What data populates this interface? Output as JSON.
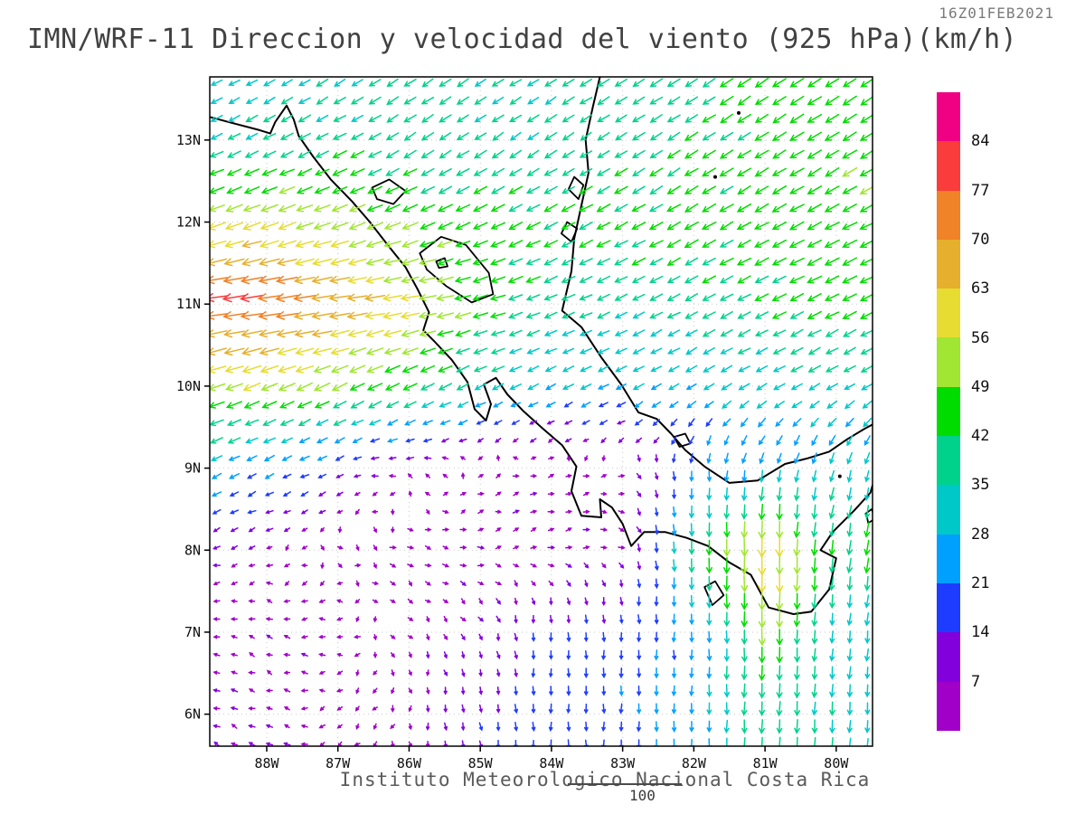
{
  "header": {
    "timestamp": "16Z01FEB2021",
    "title": "IMN/WRF-11 Direccion y velocidad del viento (925 hPa)(km/h)"
  },
  "footer": {
    "institution": "Instituto Meteorologico Nacional Costa Rica",
    "ref_label": "100"
  },
  "chart_data": {
    "type": "vector_field",
    "title": "IMN/WRF-11 Direccion y velocidad del viento (925 hPa)(km/h)",
    "level": "925 hPa",
    "units": "km/h",
    "valid_time": "16Z01FEB2021",
    "lon_range": [
      -88.8,
      -79.49
    ],
    "lat_range": [
      5.61,
      13.77
    ],
    "x_ticks": [
      "88W",
      "87W",
      "86W",
      "85W",
      "84W",
      "83W",
      "82W",
      "81W",
      "80W"
    ],
    "x_tick_lons": [
      -88,
      -87,
      -86,
      -85,
      -84,
      -83,
      -82,
      -81,
      -80
    ],
    "y_ticks": [
      "13N",
      "12N",
      "11N",
      "10N",
      "9N",
      "8N",
      "7N",
      "6N"
    ],
    "y_tick_lats": [
      13,
      12,
      11,
      10,
      9,
      8,
      7,
      6
    ],
    "colorbar": {
      "levels": [
        7,
        14,
        21,
        28,
        35,
        42,
        49,
        56,
        63,
        70,
        77,
        84
      ],
      "labels": [
        "7",
        "14",
        "21",
        "28",
        "35",
        "42",
        "49",
        "56",
        "63",
        "70",
        "77",
        "84"
      ],
      "colors": [
        "#A000C8",
        "#8200DC",
        "#1E3CFF",
        "#00A0FF",
        "#00C8C8",
        "#00D28C",
        "#00DC00",
        "#A0E632",
        "#E6DC32",
        "#E6AF2D",
        "#F08228",
        "#FA3C3C",
        "#F00082"
      ]
    },
    "wind_grid": {
      "comment": "u,v wind components (km/h, east/north positive) on coarse grid; rows follow lats order",
      "lons": [
        -89,
        -88,
        -87,
        -86,
        -85,
        -84,
        -83,
        -82,
        -81,
        -80,
        -79.4
      ],
      "lats": [
        14,
        13,
        12,
        11,
        10,
        9,
        8,
        7,
        6,
        5.5
      ],
      "u": [
        [
          -25,
          -25,
          -28,
          -30,
          -30,
          -30,
          -32,
          -35,
          -38,
          -38,
          -38
        ],
        [
          -30,
          -32,
          -35,
          -32,
          -30,
          -30,
          -32,
          -35,
          -38,
          -40,
          -40
        ],
        [
          -52,
          -55,
          -50,
          -45,
          -40,
          -38,
          -38,
          -38,
          -40,
          -42,
          -42
        ],
        [
          -78,
          -76,
          -68,
          -58,
          -45,
          -35,
          -32,
          -35,
          -38,
          -40,
          -40
        ],
        [
          -55,
          -50,
          -45,
          -40,
          -30,
          -25,
          -25,
          -25,
          -28,
          -28,
          -28
        ],
        [
          -25,
          -20,
          -12,
          -5,
          3,
          5,
          4,
          0,
          -5,
          -8,
          -8
        ],
        [
          -8,
          -5,
          3,
          5,
          6,
          6,
          5,
          2,
          0,
          -5,
          -5
        ],
        [
          -6,
          -5,
          -4,
          2,
          3,
          0,
          0,
          0,
          0,
          -3,
          -3
        ],
        [
          -8,
          -6,
          -4,
          0,
          2,
          0,
          0,
          0,
          -2,
          -2,
          -2
        ],
        [
          -8,
          -6,
          -4,
          0,
          2,
          0,
          0,
          0,
          -2,
          -2,
          -2
        ]
      ],
      "v": [
        [
          -15,
          -15,
          -18,
          -20,
          -20,
          -18,
          -20,
          -22,
          -25,
          -25,
          -25
        ],
        [
          -15,
          -16,
          -18,
          -20,
          -20,
          -20,
          -20,
          -22,
          -24,
          -25,
          -25
        ],
        [
          -18,
          -20,
          -18,
          -18,
          -18,
          -20,
          -20,
          -22,
          -22,
          -22,
          -22
        ],
        [
          -10,
          -10,
          -10,
          -10,
          -12,
          -15,
          -15,
          -18,
          -18,
          -20,
          -20
        ],
        [
          -18,
          -20,
          -22,
          -20,
          -15,
          -12,
          -12,
          -15,
          -15,
          -15,
          -15
        ],
        [
          -12,
          -10,
          -5,
          2,
          3,
          2,
          0,
          -20,
          -25,
          -28,
          -28
        ],
        [
          -3,
          -2,
          -2,
          -2,
          0,
          2,
          -3,
          -40,
          -65,
          -40,
          -45
        ],
        [
          2,
          2,
          0,
          -3,
          -8,
          -15,
          -18,
          -22,
          -50,
          -30,
          -30
        ],
        [
          3,
          2,
          -2,
          -6,
          -12,
          -18,
          -20,
          -25,
          -40,
          -35,
          -30
        ],
        [
          3,
          2,
          -2,
          -6,
          -12,
          -18,
          -20,
          -25,
          -40,
          -35,
          -30
        ]
      ]
    },
    "coastlines": {
      "open": [
        [
          [
            -88.8,
            13.28
          ],
          [
            -88.45,
            13.2
          ],
          [
            -88.1,
            13.12
          ],
          [
            -87.95,
            13.08
          ],
          [
            -87.88,
            13.22
          ],
          [
            -87.72,
            13.42
          ],
          [
            -87.62,
            13.25
          ],
          [
            -87.55,
            13.05
          ],
          [
            -87.35,
            12.8
          ],
          [
            -87.1,
            12.52
          ],
          [
            -86.8,
            12.25
          ],
          [
            -86.55,
            12.0
          ],
          [
            -86.3,
            11.72
          ],
          [
            -86.05,
            11.45
          ],
          [
            -85.88,
            11.18
          ],
          [
            -85.72,
            10.9
          ],
          [
            -85.8,
            10.68
          ],
          [
            -85.65,
            10.55
          ],
          [
            -85.4,
            10.32
          ],
          [
            -85.18,
            10.05
          ],
          [
            -85.08,
            9.72
          ],
          [
            -84.92,
            9.58
          ],
          [
            -84.85,
            9.78
          ],
          [
            -84.95,
            10.02
          ],
          [
            -84.78,
            10.1
          ],
          [
            -84.62,
            9.9
          ],
          [
            -84.4,
            9.7
          ],
          [
            -84.12,
            9.48
          ],
          [
            -83.85,
            9.28
          ],
          [
            -83.65,
            9.02
          ],
          [
            -83.72,
            8.72
          ],
          [
            -83.58,
            8.42
          ],
          [
            -83.3,
            8.4
          ],
          [
            -83.32,
            8.62
          ],
          [
            -83.15,
            8.52
          ],
          [
            -83.0,
            8.32
          ],
          [
            -82.88,
            8.05
          ],
          [
            -82.7,
            8.22
          ],
          [
            -82.4,
            8.22
          ],
          [
            -82.1,
            8.15
          ],
          [
            -81.8,
            8.05
          ],
          [
            -81.5,
            7.85
          ],
          [
            -81.2,
            7.7
          ],
          [
            -80.95,
            7.3
          ],
          [
            -80.6,
            7.22
          ],
          [
            -80.35,
            7.25
          ],
          [
            -80.1,
            7.52
          ],
          [
            -80.0,
            7.9
          ],
          [
            -80.22,
            8.0
          ],
          [
            -80.05,
            8.22
          ],
          [
            -79.75,
            8.48
          ],
          [
            -79.52,
            8.7
          ],
          [
            -79.45,
            8.9
          ]
        ],
        [
          [
            -83.32,
            13.77
          ],
          [
            -83.42,
            13.4
          ],
          [
            -83.52,
            13.0
          ],
          [
            -83.48,
            12.6
          ],
          [
            -83.58,
            12.2
          ],
          [
            -83.68,
            11.8
          ],
          [
            -83.72,
            11.4
          ],
          [
            -83.85,
            10.92
          ],
          [
            -83.58,
            10.72
          ],
          [
            -83.3,
            10.35
          ],
          [
            -83.02,
            10.02
          ],
          [
            -82.78,
            9.68
          ],
          [
            -82.52,
            9.6
          ],
          [
            -82.32,
            9.42
          ],
          [
            -82.12,
            9.22
          ],
          [
            -81.85,
            9.02
          ],
          [
            -81.5,
            8.82
          ],
          [
            -81.1,
            8.85
          ],
          [
            -80.72,
            9.05
          ],
          [
            -80.4,
            9.12
          ],
          [
            -80.1,
            9.2
          ],
          [
            -79.85,
            9.35
          ],
          [
            -79.6,
            9.48
          ],
          [
            -79.45,
            9.55
          ]
        ]
      ],
      "closed": [
        [
          [
            -85.85,
            11.62
          ],
          [
            -85.55,
            11.82
          ],
          [
            -85.2,
            11.72
          ],
          [
            -84.88,
            11.38
          ],
          [
            -84.82,
            11.12
          ],
          [
            -85.12,
            11.02
          ],
          [
            -85.48,
            11.22
          ],
          [
            -85.75,
            11.42
          ]
        ],
        [
          [
            -86.52,
            12.42
          ],
          [
            -86.28,
            12.52
          ],
          [
            -86.05,
            12.38
          ],
          [
            -86.22,
            12.22
          ],
          [
            -86.45,
            12.28
          ]
        ],
        [
          [
            -85.62,
            11.52
          ],
          [
            -85.5,
            11.56
          ],
          [
            -85.46,
            11.46
          ],
          [
            -85.58,
            11.44
          ]
        ],
        [
          [
            -83.68,
            12.55
          ],
          [
            -83.55,
            12.45
          ],
          [
            -83.62,
            12.28
          ],
          [
            -83.76,
            12.4
          ]
        ],
        [
          [
            -83.78,
            12.0
          ],
          [
            -83.64,
            11.92
          ],
          [
            -83.72,
            11.76
          ],
          [
            -83.86,
            11.86
          ]
        ],
        [
          [
            -81.85,
            7.55
          ],
          [
            -81.7,
            7.62
          ],
          [
            -81.58,
            7.45
          ],
          [
            -81.74,
            7.33
          ]
        ],
        [
          [
            -82.28,
            9.38
          ],
          [
            -82.12,
            9.42
          ],
          [
            -82.05,
            9.3
          ],
          [
            -82.2,
            9.26
          ]
        ],
        [
          [
            -79.58,
            8.45
          ],
          [
            -79.5,
            8.5
          ],
          [
            -79.46,
            8.38
          ],
          [
            -79.55,
            8.33
          ]
        ]
      ],
      "dots": [
        [
          -81.7,
          12.55
        ],
        [
          -81.37,
          13.33
        ],
        [
          -79.95,
          8.9
        ]
      ]
    }
  }
}
